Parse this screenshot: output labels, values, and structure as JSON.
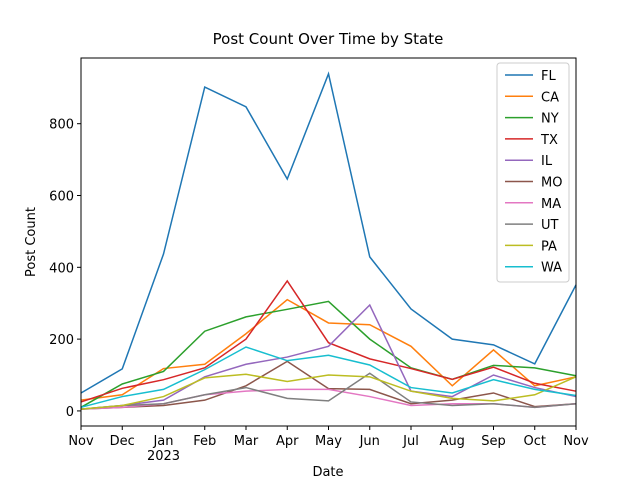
{
  "chart_data": {
    "type": "line",
    "title": "Post Count Over Time by State",
    "x_label": "Date",
    "y_label": "Post Count",
    "categories": [
      "Nov",
      "Dec",
      "Jan\n2023",
      "Feb",
      "Mar",
      "Apr",
      "May",
      "Jun",
      "Jul",
      "Aug",
      "Sep",
      "Oct",
      "Nov"
    ],
    "ylim": [
      -42,
      983
    ],
    "yticks": [
      0,
      200,
      400,
      600,
      800
    ],
    "legend": "upper right",
    "series": [
      {
        "name": "FL",
        "color": "#1f77b4",
        "values": [
          50,
          117,
          437,
          902,
          847,
          646,
          939,
          429,
          284,
          200,
          184,
          131,
          351
        ]
      },
      {
        "name": "CA",
        "color": "#ff7f0e",
        "values": [
          30,
          45,
          118,
          130,
          215,
          310,
          245,
          240,
          180,
          70,
          170,
          70,
          95
        ]
      },
      {
        "name": "NY",
        "color": "#2ca02c",
        "values": [
          10,
          75,
          110,
          222,
          262,
          283,
          305,
          200,
          120,
          88,
          127,
          120,
          98
        ]
      },
      {
        "name": "TX",
        "color": "#d62728",
        "values": [
          25,
          63,
          87,
          120,
          200,
          362,
          190,
          145,
          118,
          88,
          122,
          77,
          55
        ]
      },
      {
        "name": "IL",
        "color": "#9467bd",
        "values": [
          5,
          15,
          30,
          95,
          130,
          150,
          180,
          295,
          55,
          40,
          100,
          65,
          40
        ]
      },
      {
        "name": "MO",
        "color": "#8c564b",
        "values": [
          5,
          10,
          15,
          30,
          70,
          138,
          62,
          60,
          20,
          30,
          50,
          12,
          20
        ]
      },
      {
        "name": "MA",
        "color": "#e377c2",
        "values": [
          5,
          10,
          20,
          45,
          55,
          60,
          60,
          40,
          15,
          20,
          20,
          10,
          20
        ]
      },
      {
        "name": "UT",
        "color": "#7f7f7f",
        "values": [
          5,
          15,
          20,
          45,
          65,
          35,
          28,
          105,
          25,
          15,
          20,
          10,
          20
        ]
      },
      {
        "name": "PA",
        "color": "#bcbd22",
        "values": [
          5,
          15,
          40,
          92,
          102,
          82,
          100,
          95,
          55,
          35,
          28,
          45,
          95
        ]
      },
      {
        "name": "WA",
        "color": "#17becf",
        "values": [
          10,
          40,
          60,
          115,
          178,
          140,
          155,
          128,
          65,
          50,
          87,
          60,
          43
        ]
      }
    ]
  }
}
